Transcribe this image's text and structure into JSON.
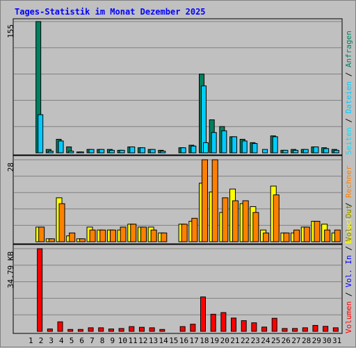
{
  "title": "Tages-Statistik im Monat Dezember 2025",
  "colors": {
    "background": "#c0c0c0",
    "panel": "#c0c0c0",
    "grid": "#808080",
    "title": "#0000ff",
    "weekend_label": "#008040",
    "anfragen": "#008060",
    "dateien": "#00ccff",
    "seiten": "#00e0ff",
    "besuche": "#ffff00",
    "rechner": "#ff8000",
    "vol_out": "#808000",
    "vol_in": "#0000ff",
    "volumen": "#ff0000"
  },
  "chart_data": [
    {
      "type": "bar",
      "panel": "top",
      "ymax_label": "155",
      "ylim": [
        0,
        155
      ],
      "categories": [
        "1",
        "2",
        "3",
        "4",
        "5",
        "6",
        "7",
        "8",
        "9",
        "10",
        "11",
        "12",
        "13",
        "14",
        "15",
        "16",
        "17",
        "18",
        "19",
        "20",
        "21",
        "22",
        "23",
        "24",
        "25",
        "26",
        "27",
        "28",
        "29",
        "30",
        "31"
      ],
      "weekend_days": [
        "6",
        "7",
        "13",
        "14",
        "20",
        "21",
        "27",
        "28"
      ],
      "legend": [
        "Anfragen",
        "Dateien",
        "Seiten"
      ],
      "series": [
        {
          "name": "Anfragen",
          "values": [
            0,
            155,
            4,
            16,
            7,
            1,
            4,
            4,
            4,
            3,
            7,
            6,
            4,
            3,
            0,
            6,
            9,
            93,
            39,
            31,
            19,
            16,
            12,
            0,
            20,
            3,
            4,
            4,
            7,
            6,
            4
          ]
        },
        {
          "name": "Dateien",
          "values": [
            0,
            45,
            2,
            14,
            2,
            1,
            4,
            4,
            3,
            3,
            7,
            6,
            4,
            2,
            0,
            6,
            8,
            79,
            24,
            26,
            19,
            14,
            11,
            4,
            19,
            3,
            3,
            4,
            7,
            5,
            3
          ]
        },
        {
          "name": "Seiten",
          "values": [
            0,
            0,
            0,
            0,
            0,
            0,
            0,
            0,
            0,
            0,
            0,
            0,
            0,
            0,
            0,
            0,
            0,
            12,
            0,
            0,
            0,
            0,
            0,
            0,
            0,
            0,
            0,
            0,
            0,
            0,
            0
          ]
        }
      ]
    },
    {
      "type": "bar",
      "panel": "middle",
      "ymax_label": "28",
      "ylim": [
        0,
        28
      ],
      "categories": [
        "1",
        "2",
        "3",
        "4",
        "5",
        "6",
        "7",
        "8",
        "9",
        "10",
        "11",
        "12",
        "13",
        "14",
        "15",
        "16",
        "17",
        "18",
        "19",
        "20",
        "21",
        "22",
        "23",
        "24",
        "25",
        "26",
        "27",
        "28",
        "29",
        "30",
        "31"
      ],
      "legend": [
        "Besuche",
        "Rechner"
      ],
      "series": [
        {
          "name": "Besuche",
          "values": [
            0,
            5,
            1,
            15,
            2,
            1,
            5,
            4,
            4,
            4,
            6,
            5,
            5,
            3,
            0,
            6,
            7,
            20,
            17,
            10,
            18,
            13,
            12,
            4,
            19,
            3,
            3,
            5,
            7,
            6,
            3
          ]
        },
        {
          "name": "Rechner",
          "values": [
            0,
            5,
            1,
            13,
            3,
            1,
            4,
            4,
            4,
            5,
            6,
            5,
            4,
            3,
            0,
            6,
            8,
            28,
            28,
            15,
            14,
            14,
            10,
            3,
            16,
            3,
            4,
            5,
            7,
            4,
            4
          ]
        }
      ]
    },
    {
      "type": "bar",
      "panel": "bottom",
      "ymax_label": "34.79 KB",
      "ylim": [
        0,
        34.79
      ],
      "categories": [
        "1",
        "2",
        "3",
        "4",
        "5",
        "6",
        "7",
        "8",
        "9",
        "10",
        "11",
        "12",
        "13",
        "14",
        "15",
        "16",
        "17",
        "18",
        "19",
        "20",
        "21",
        "22",
        "23",
        "24",
        "25",
        "26",
        "27",
        "28",
        "29",
        "30",
        "31"
      ],
      "legend": [
        "Volumen",
        "Vol. In",
        "Vol. Out"
      ],
      "series": [
        {
          "name": "Volumen",
          "values": [
            0,
            34.79,
            1,
            4,
            0.8,
            0.8,
            1.5,
            1.5,
            1,
            1.2,
            2,
            1.7,
            1.5,
            0.8,
            0,
            2,
            3,
            14.5,
            7.2,
            7.9,
            5.6,
            4.5,
            3.6,
            1.8,
            5.5,
            1.2,
            1.2,
            1.5,
            2.5,
            2.1,
            1.5
          ]
        }
      ]
    }
  ]
}
